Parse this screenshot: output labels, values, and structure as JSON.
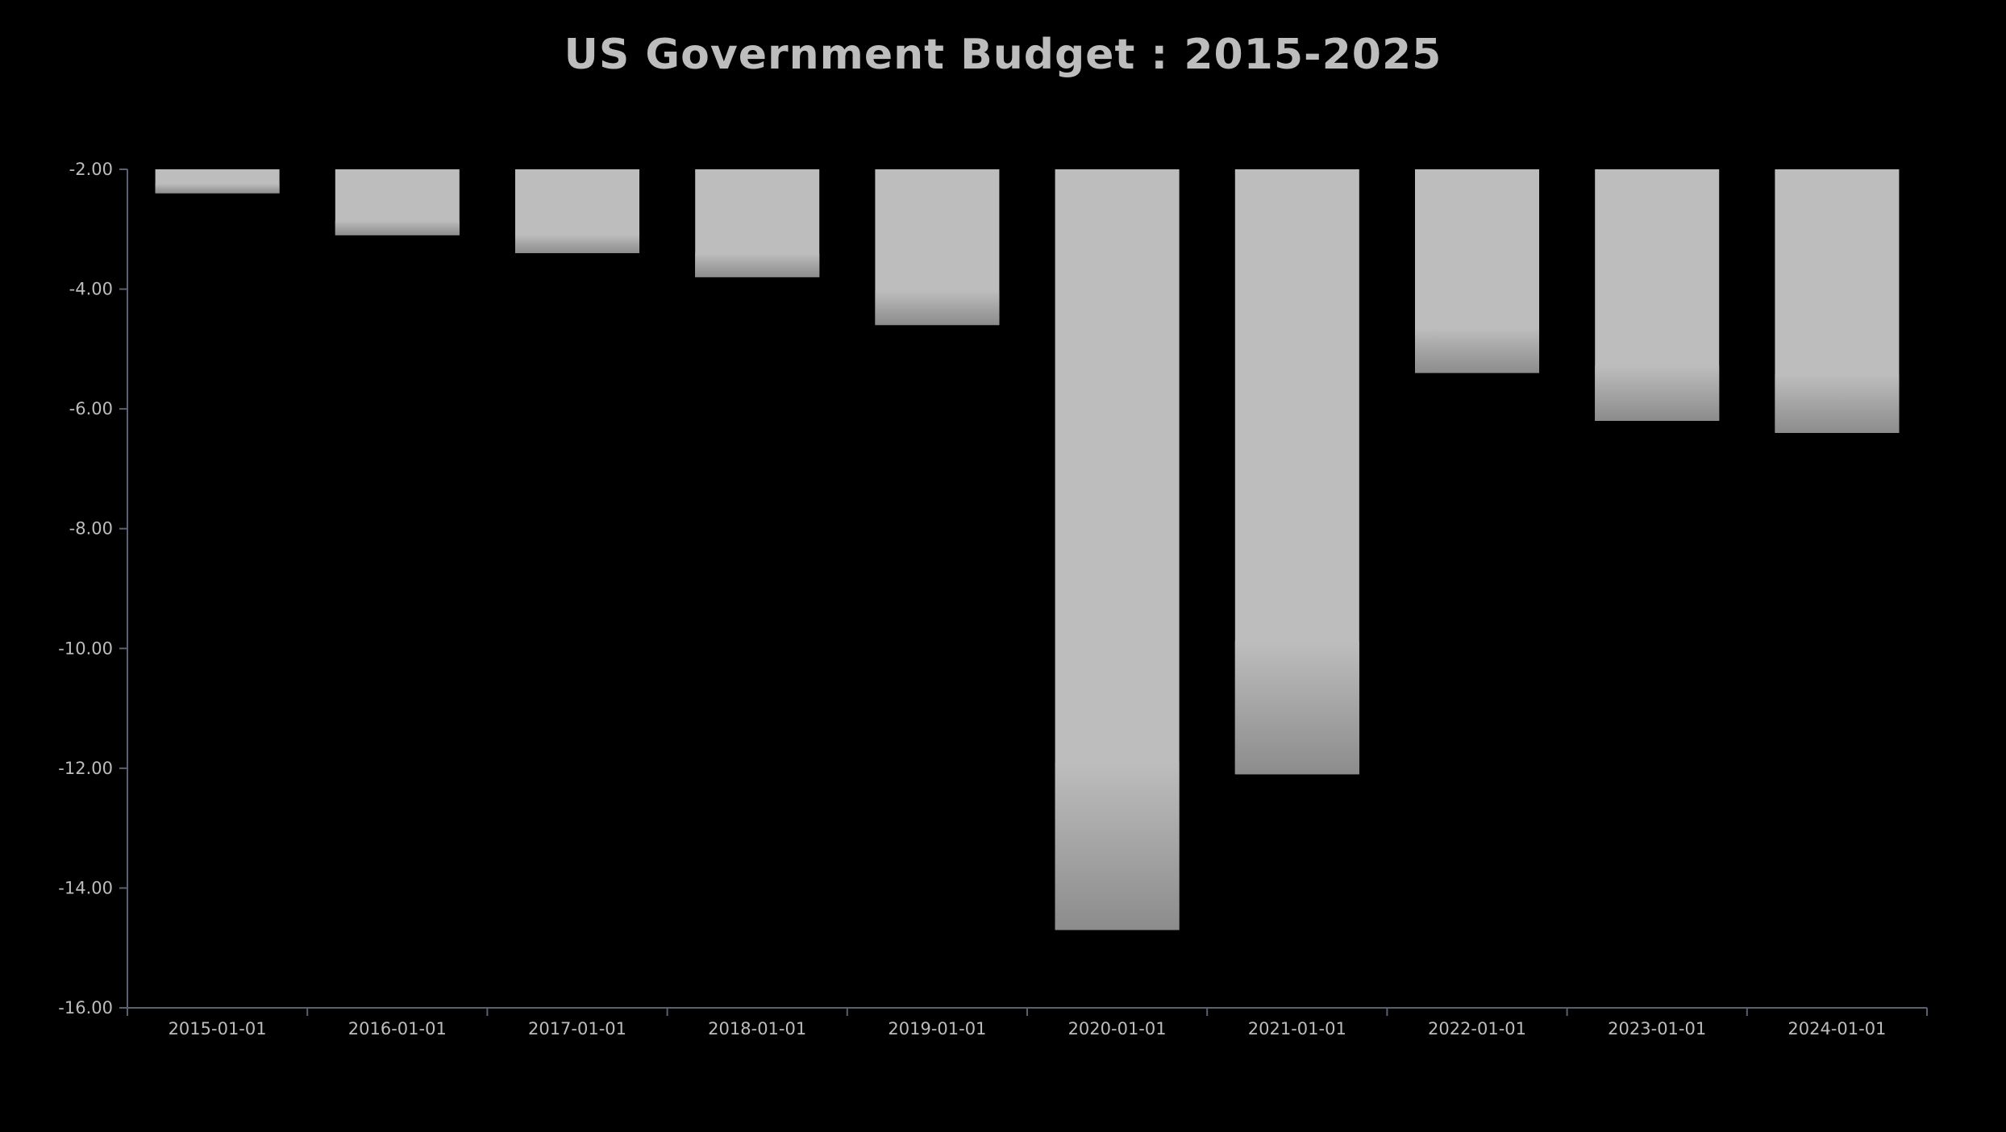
{
  "chart_data": {
    "type": "bar",
    "title": "US Government Budget : 2015-2025",
    "xlabel": "",
    "ylabel": "",
    "categories": [
      "2015-01-01",
      "2016-01-01",
      "2017-01-01",
      "2018-01-01",
      "2019-01-01",
      "2020-01-01",
      "2021-01-01",
      "2022-01-01",
      "2023-01-01",
      "2024-01-01"
    ],
    "values": [
      -2.4,
      -3.1,
      -3.4,
      -3.8,
      -4.6,
      -14.7,
      -12.1,
      -5.4,
      -6.2,
      -6.4
    ],
    "ylim": [
      -16,
      -2
    ],
    "yticks": [
      "-2.00",
      "-4.00",
      "-6.00",
      "-8.00",
      "-10.00",
      "-12.00",
      "-14.00",
      "-16.00"
    ],
    "grid": false,
    "legend": "none",
    "colors": {
      "background": "#000000",
      "bar": "#bdbdbd",
      "bar_shade": "#8c8c8c",
      "axis": "#5a6070",
      "text": "#bdbdbd"
    }
  }
}
